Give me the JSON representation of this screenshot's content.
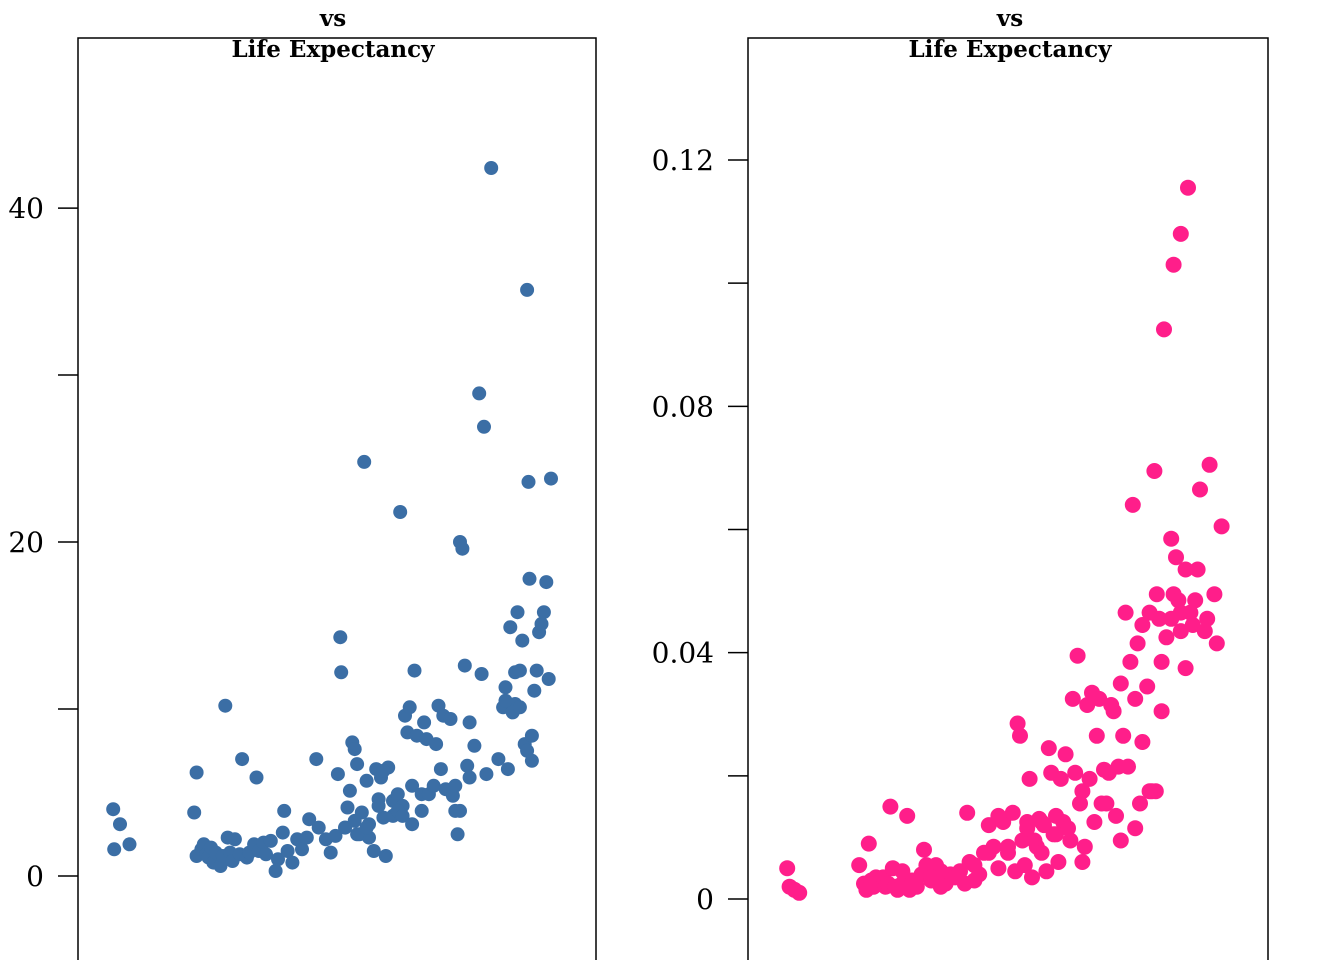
{
  "chart_data": [
    {
      "type": "scatter",
      "title_lines": [
        "",
        "vs",
        "Life Expectancy"
      ],
      "color": "#3b6ea5",
      "yticks_labeled": [
        {
          "value": 0,
          "label": "0"
        },
        {
          "value": 20,
          "label": "20"
        },
        {
          "value": 40,
          "label": "40"
        }
      ],
      "yticks_unlabeled": [
        10,
        30
      ],
      "ylim": [
        -6.2,
        49.7
      ],
      "xlim": [
        0,
        1
      ],
      "points": [
        [
          0.036,
          4
        ],
        [
          0.05,
          3.1
        ],
        [
          0.038,
          1.6
        ],
        [
          0.07,
          1.9
        ],
        [
          0.205,
          3.8
        ],
        [
          0.21,
          6.2
        ],
        [
          0.21,
          1.2
        ],
        [
          0.22,
          1.6
        ],
        [
          0.225,
          1.9
        ],
        [
          0.23,
          1.3
        ],
        [
          0.235,
          1.1
        ],
        [
          0.24,
          1.7
        ],
        [
          0.245,
          0.8
        ],
        [
          0.25,
          1.4
        ],
        [
          0.26,
          0.6
        ],
        [
          0.265,
          1.2
        ],
        [
          0.27,
          10.2
        ],
        [
          0.275,
          2.3
        ],
        [
          0.28,
          1.4
        ],
        [
          0.285,
          0.9
        ],
        [
          0.29,
          2.2
        ],
        [
          0.3,
          1.3
        ],
        [
          0.305,
          7
        ],
        [
          0.315,
          1.1
        ],
        [
          0.32,
          1.4
        ],
        [
          0.33,
          1.9
        ],
        [
          0.335,
          5.9
        ],
        [
          0.34,
          1.5
        ],
        [
          0.35,
          2
        ],
        [
          0.355,
          1.3
        ],
        [
          0.365,
          2.1
        ],
        [
          0.375,
          0.3
        ],
        [
          0.38,
          1
        ],
        [
          0.39,
          2.6
        ],
        [
          0.393,
          3.9
        ],
        [
          0.4,
          1.5
        ],
        [
          0.41,
          0.8
        ],
        [
          0.42,
          2.2
        ],
        [
          0.43,
          1.6
        ],
        [
          0.44,
          2.3
        ],
        [
          0.445,
          3.4
        ],
        [
          0.46,
          7
        ],
        [
          0.48,
          2.2
        ],
        [
          0.49,
          1.4
        ],
        [
          0.5,
          2.4
        ],
        [
          0.505,
          6.1
        ],
        [
          0.51,
          14.3
        ],
        [
          0.512,
          12.2
        ],
        [
          0.52,
          2.9
        ],
        [
          0.525,
          4.1
        ],
        [
          0.53,
          5.1
        ],
        [
          0.535,
          8
        ],
        [
          0.54,
          7.6
        ],
        [
          0.545,
          6.7
        ],
        [
          0.55,
          2.5
        ],
        [
          0.555,
          3.8
        ],
        [
          0.56,
          24.8
        ],
        [
          0.565,
          5.7
        ],
        [
          0.57,
          2.3
        ],
        [
          0.58,
          1.5
        ],
        [
          0.585,
          6.4
        ],
        [
          0.59,
          4.6
        ],
        [
          0.595,
          5.9
        ],
        [
          0.6,
          3.5
        ],
        [
          0.605,
          1.2
        ],
        [
          0.61,
          6.5
        ],
        [
          0.62,
          4.5
        ],
        [
          0.625,
          3.7
        ],
        [
          0.63,
          4.9
        ],
        [
          0.635,
          21.8
        ],
        [
          0.64,
          4.2
        ],
        [
          0.645,
          9.6
        ],
        [
          0.65,
          8.6
        ],
        [
          0.655,
          10.1
        ],
        [
          0.66,
          5.4
        ],
        [
          0.665,
          12.3
        ],
        [
          0.67,
          8.4
        ],
        [
          0.68,
          4.9
        ],
        [
          0.685,
          9.2
        ],
        [
          0.69,
          8.2
        ],
        [
          0.695,
          4.9
        ],
        [
          0.705,
          5.4
        ],
        [
          0.71,
          7.9
        ],
        [
          0.715,
          10.2
        ],
        [
          0.72,
          6.4
        ],
        [
          0.725,
          9.6
        ],
        [
          0.73,
          5.2
        ],
        [
          0.74,
          9.4
        ],
        [
          0.745,
          4.8
        ],
        [
          0.75,
          3.9
        ],
        [
          0.755,
          2.5
        ],
        [
          0.76,
          20
        ],
        [
          0.765,
          19.6
        ],
        [
          0.77,
          12.6
        ],
        [
          0.775,
          6.6
        ],
        [
          0.78,
          9.2
        ],
        [
          0.79,
          7.8
        ],
        [
          0.8,
          28.9
        ],
        [
          0.805,
          12.1
        ],
        [
          0.81,
          26.9
        ],
        [
          0.815,
          6.1
        ],
        [
          0.825,
          42.4
        ],
        [
          0.84,
          7
        ],
        [
          0.85,
          10.1
        ],
        [
          0.855,
          11.3
        ],
        [
          0.86,
          6.4
        ],
        [
          0.865,
          14.9
        ],
        [
          0.87,
          9.9
        ],
        [
          0.875,
          12.2
        ],
        [
          0.88,
          15.8
        ],
        [
          0.885,
          12.3
        ],
        [
          0.89,
          14.1
        ],
        [
          0.895,
          7.9
        ],
        [
          0.9,
          35.1
        ],
        [
          0.903,
          23.6
        ],
        [
          0.905,
          17.8
        ],
        [
          0.91,
          8.4
        ],
        [
          0.915,
          11.1
        ],
        [
          0.92,
          12.3
        ],
        [
          0.925,
          14.6
        ],
        [
          0.93,
          15.1
        ],
        [
          0.935,
          15.8
        ],
        [
          0.94,
          17.6
        ],
        [
          0.945,
          11.8
        ],
        [
          0.95,
          23.8
        ],
        [
          0.875,
          10.3
        ],
        [
          0.57,
          3.1
        ],
        [
          0.59,
          4.2
        ],
        [
          0.465,
          2.9
        ],
        [
          0.52,
          2.9
        ],
        [
          0.54,
          3.3
        ],
        [
          0.545,
          2.5
        ],
        [
          0.565,
          2.9
        ],
        [
          0.6,
          6.3
        ],
        [
          0.62,
          3.6
        ],
        [
          0.63,
          3.9
        ],
        [
          0.64,
          3.6
        ],
        [
          0.66,
          3.1
        ],
        [
          0.68,
          3.9
        ],
        [
          0.75,
          5.4
        ],
        [
          0.76,
          3.9
        ],
        [
          0.78,
          5.9
        ],
        [
          0.855,
          10.5
        ],
        [
          0.87,
          9.8
        ],
        [
          0.885,
          10.1
        ],
        [
          0.9,
          7.5
        ],
        [
          0.91,
          6.9
        ]
      ]
    },
    {
      "type": "scatter",
      "title_lines": [
        "vs",
        "Life Expectancy"
      ],
      "color": "#ff1e8a",
      "yticks_labeled": [
        {
          "value": 0,
          "label": "0"
        },
        {
          "value": 0.04,
          "label": "0.04"
        },
        {
          "value": 0.08,
          "label": "0.08"
        },
        {
          "value": 0.12,
          "label": "0.12"
        }
      ],
      "yticks_unlabeled": [
        0.02,
        0.06,
        0.1
      ],
      "ylim": [
        -0.01,
        0.14
      ],
      "xlim": [
        0,
        1
      ],
      "points": [
        [
          0.04,
          0.005
        ],
        [
          0.045,
          0.002
        ],
        [
          0.055,
          0.0015
        ],
        [
          0.065,
          0.001
        ],
        [
          0.19,
          0.0055
        ],
        [
          0.2,
          0.0025
        ],
        [
          0.205,
          0.0015
        ],
        [
          0.21,
          0.009
        ],
        [
          0.215,
          0.003
        ],
        [
          0.22,
          0.002
        ],
        [
          0.225,
          0.0035
        ],
        [
          0.23,
          0.0025
        ],
        [
          0.235,
          0.003
        ],
        [
          0.24,
          0.0035
        ],
        [
          0.245,
          0.002
        ],
        [
          0.25,
          0.0025
        ],
        [
          0.255,
          0.015
        ],
        [
          0.26,
          0.005
        ],
        [
          0.265,
          0.002
        ],
        [
          0.27,
          0.0015
        ],
        [
          0.28,
          0.0025
        ],
        [
          0.29,
          0.0135
        ],
        [
          0.295,
          0.0015
        ],
        [
          0.3,
          0.003
        ],
        [
          0.31,
          0.002
        ],
        [
          0.32,
          0.004
        ],
        [
          0.325,
          0.008
        ],
        [
          0.33,
          0.0055
        ],
        [
          0.34,
          0.003
        ],
        [
          0.35,
          0.0055
        ],
        [
          0.36,
          0.002
        ],
        [
          0.37,
          0.0025
        ],
        [
          0.38,
          0.004
        ],
        [
          0.39,
          0.0035
        ],
        [
          0.4,
          0.0045
        ],
        [
          0.41,
          0.0025
        ],
        [
          0.415,
          0.014
        ],
        [
          0.42,
          0.006
        ],
        [
          0.43,
          0.003
        ],
        [
          0.44,
          0.004
        ],
        [
          0.45,
          0.0075
        ],
        [
          0.46,
          0.012
        ],
        [
          0.47,
          0.0085
        ],
        [
          0.48,
          0.005
        ],
        [
          0.49,
          0.0125
        ],
        [
          0.5,
          0.0075
        ],
        [
          0.51,
          0.014
        ],
        [
          0.515,
          0.0045
        ],
        [
          0.52,
          0.0285
        ],
        [
          0.525,
          0.0265
        ],
        [
          0.53,
          0.0095
        ],
        [
          0.535,
          0.0055
        ],
        [
          0.54,
          0.0115
        ],
        [
          0.545,
          0.0195
        ],
        [
          0.55,
          0.0035
        ],
        [
          0.555,
          0.0095
        ],
        [
          0.56,
          0.0085
        ],
        [
          0.565,
          0.013
        ],
        [
          0.57,
          0.0075
        ],
        [
          0.575,
          0.012
        ],
        [
          0.58,
          0.0045
        ],
        [
          0.585,
          0.0245
        ],
        [
          0.59,
          0.0205
        ],
        [
          0.595,
          0.0105
        ],
        [
          0.6,
          0.0135
        ],
        [
          0.605,
          0.006
        ],
        [
          0.61,
          0.0195
        ],
        [
          0.615,
          0.0125
        ],
        [
          0.62,
          0.0235
        ],
        [
          0.63,
          0.0095
        ],
        [
          0.635,
          0.0325
        ],
        [
          0.64,
          0.0205
        ],
        [
          0.645,
          0.0395
        ],
        [
          0.65,
          0.0155
        ],
        [
          0.655,
          0.006
        ],
        [
          0.66,
          0.0085
        ],
        [
          0.665,
          0.0315
        ],
        [
          0.67,
          0.0195
        ],
        [
          0.675,
          0.0335
        ],
        [
          0.68,
          0.0125
        ],
        [
          0.685,
          0.0265
        ],
        [
          0.69,
          0.0325
        ],
        [
          0.695,
          0.0155
        ],
        [
          0.7,
          0.021
        ],
        [
          0.71,
          0.0205
        ],
        [
          0.715,
          0.0315
        ],
        [
          0.72,
          0.0305
        ],
        [
          0.725,
          0.0135
        ],
        [
          0.73,
          0.0215
        ],
        [
          0.735,
          0.035
        ],
        [
          0.74,
          0.0265
        ],
        [
          0.745,
          0.0465
        ],
        [
          0.75,
          0.0215
        ],
        [
          0.755,
          0.0385
        ],
        [
          0.76,
          0.064
        ],
        [
          0.765,
          0.0325
        ],
        [
          0.77,
          0.0415
        ],
        [
          0.78,
          0.0255
        ],
        [
          0.79,
          0.0345
        ],
        [
          0.8,
          0.0175
        ],
        [
          0.805,
          0.0695
        ],
        [
          0.81,
          0.0495
        ],
        [
          0.815,
          0.0455
        ],
        [
          0.82,
          0.0305
        ],
        [
          0.825,
          0.0925
        ],
        [
          0.83,
          0.0425
        ],
        [
          0.84,
          0.0585
        ],
        [
          0.845,
          0.0495
        ],
        [
          0.85,
          0.0555
        ],
        [
          0.855,
          0.0485
        ],
        [
          0.86,
          0.0435
        ],
        [
          0.87,
          0.0535
        ],
        [
          0.875,
          0.1155
        ],
        [
          0.88,
          0.0465
        ],
        [
          0.885,
          0.0445
        ],
        [
          0.89,
          0.0485
        ],
        [
          0.895,
          0.0535
        ],
        [
          0.9,
          0.0665
        ],
        [
          0.91,
          0.0435
        ],
        [
          0.915,
          0.0455
        ],
        [
          0.92,
          0.0705
        ],
        [
          0.93,
          0.0495
        ],
        [
          0.935,
          0.0415
        ],
        [
          0.945,
          0.0605
        ],
        [
          0.86,
          0.108
        ],
        [
          0.845,
          0.103
        ],
        [
          0.808,
          0.0175
        ],
        [
          0.795,
          0.0175
        ],
        [
          0.775,
          0.0155
        ],
        [
          0.765,
          0.0115
        ],
        [
          0.735,
          0.0095
        ],
        [
          0.705,
          0.0155
        ],
        [
          0.655,
          0.0175
        ],
        [
          0.625,
          0.0115
        ],
        [
          0.6,
          0.0105
        ],
        [
          0.57,
          0.0125
        ],
        [
          0.54,
          0.0125
        ],
        [
          0.5,
          0.0085
        ],
        [
          0.48,
          0.0135
        ],
        [
          0.46,
          0.0075
        ],
        [
          0.43,
          0.0055
        ],
        [
          0.36,
          0.0045
        ],
        [
          0.34,
          0.0035
        ],
        [
          0.3,
          0.0025
        ],
        [
          0.28,
          0.0045
        ],
        [
          0.86,
          0.0465
        ],
        [
          0.87,
          0.0375
        ],
        [
          0.84,
          0.0455
        ],
        [
          0.82,
          0.0385
        ],
        [
          0.795,
          0.0465
        ],
        [
          0.78,
          0.0445
        ]
      ]
    }
  ]
}
